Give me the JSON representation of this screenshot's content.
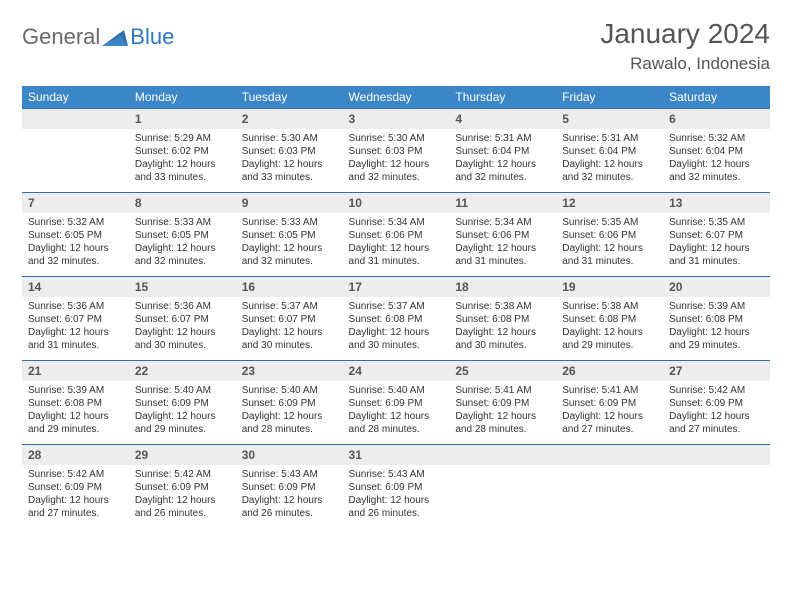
{
  "logo": {
    "general": "General",
    "blue": "Blue"
  },
  "title": "January 2024",
  "location": "Rawalo, Indonesia",
  "colors": {
    "header_bg": "#3b86c7",
    "header_text": "#ffffff",
    "daynum_bg": "#ededed",
    "daynum_border": "#2f6ea8",
    "body_text": "#333333",
    "title_color": "#555555"
  },
  "day_headers": [
    "Sunday",
    "Monday",
    "Tuesday",
    "Wednesday",
    "Thursday",
    "Friday",
    "Saturday"
  ],
  "weeks": [
    {
      "nums": [
        "",
        "1",
        "2",
        "3",
        "4",
        "5",
        "6"
      ],
      "cells": [
        null,
        {
          "sunrise": "Sunrise: 5:29 AM",
          "sunset": "Sunset: 6:02 PM",
          "day1": "Daylight: 12 hours",
          "day2": "and 33 minutes."
        },
        {
          "sunrise": "Sunrise: 5:30 AM",
          "sunset": "Sunset: 6:03 PM",
          "day1": "Daylight: 12 hours",
          "day2": "and 33 minutes."
        },
        {
          "sunrise": "Sunrise: 5:30 AM",
          "sunset": "Sunset: 6:03 PM",
          "day1": "Daylight: 12 hours",
          "day2": "and 32 minutes."
        },
        {
          "sunrise": "Sunrise: 5:31 AM",
          "sunset": "Sunset: 6:04 PM",
          "day1": "Daylight: 12 hours",
          "day2": "and 32 minutes."
        },
        {
          "sunrise": "Sunrise: 5:31 AM",
          "sunset": "Sunset: 6:04 PM",
          "day1": "Daylight: 12 hours",
          "day2": "and 32 minutes."
        },
        {
          "sunrise": "Sunrise: 5:32 AM",
          "sunset": "Sunset: 6:04 PM",
          "day1": "Daylight: 12 hours",
          "day2": "and 32 minutes."
        }
      ]
    },
    {
      "nums": [
        "7",
        "8",
        "9",
        "10",
        "11",
        "12",
        "13"
      ],
      "cells": [
        {
          "sunrise": "Sunrise: 5:32 AM",
          "sunset": "Sunset: 6:05 PM",
          "day1": "Daylight: 12 hours",
          "day2": "and 32 minutes."
        },
        {
          "sunrise": "Sunrise: 5:33 AM",
          "sunset": "Sunset: 6:05 PM",
          "day1": "Daylight: 12 hours",
          "day2": "and 32 minutes."
        },
        {
          "sunrise": "Sunrise: 5:33 AM",
          "sunset": "Sunset: 6:05 PM",
          "day1": "Daylight: 12 hours",
          "day2": "and 32 minutes."
        },
        {
          "sunrise": "Sunrise: 5:34 AM",
          "sunset": "Sunset: 6:06 PM",
          "day1": "Daylight: 12 hours",
          "day2": "and 31 minutes."
        },
        {
          "sunrise": "Sunrise: 5:34 AM",
          "sunset": "Sunset: 6:06 PM",
          "day1": "Daylight: 12 hours",
          "day2": "and 31 minutes."
        },
        {
          "sunrise": "Sunrise: 5:35 AM",
          "sunset": "Sunset: 6:06 PM",
          "day1": "Daylight: 12 hours",
          "day2": "and 31 minutes."
        },
        {
          "sunrise": "Sunrise: 5:35 AM",
          "sunset": "Sunset: 6:07 PM",
          "day1": "Daylight: 12 hours",
          "day2": "and 31 minutes."
        }
      ]
    },
    {
      "nums": [
        "14",
        "15",
        "16",
        "17",
        "18",
        "19",
        "20"
      ],
      "cells": [
        {
          "sunrise": "Sunrise: 5:36 AM",
          "sunset": "Sunset: 6:07 PM",
          "day1": "Daylight: 12 hours",
          "day2": "and 31 minutes."
        },
        {
          "sunrise": "Sunrise: 5:36 AM",
          "sunset": "Sunset: 6:07 PM",
          "day1": "Daylight: 12 hours",
          "day2": "and 30 minutes."
        },
        {
          "sunrise": "Sunrise: 5:37 AM",
          "sunset": "Sunset: 6:07 PM",
          "day1": "Daylight: 12 hours",
          "day2": "and 30 minutes."
        },
        {
          "sunrise": "Sunrise: 5:37 AM",
          "sunset": "Sunset: 6:08 PM",
          "day1": "Daylight: 12 hours",
          "day2": "and 30 minutes."
        },
        {
          "sunrise": "Sunrise: 5:38 AM",
          "sunset": "Sunset: 6:08 PM",
          "day1": "Daylight: 12 hours",
          "day2": "and 30 minutes."
        },
        {
          "sunrise": "Sunrise: 5:38 AM",
          "sunset": "Sunset: 6:08 PM",
          "day1": "Daylight: 12 hours",
          "day2": "and 29 minutes."
        },
        {
          "sunrise": "Sunrise: 5:39 AM",
          "sunset": "Sunset: 6:08 PM",
          "day1": "Daylight: 12 hours",
          "day2": "and 29 minutes."
        }
      ]
    },
    {
      "nums": [
        "21",
        "22",
        "23",
        "24",
        "25",
        "26",
        "27"
      ],
      "cells": [
        {
          "sunrise": "Sunrise: 5:39 AM",
          "sunset": "Sunset: 6:08 PM",
          "day1": "Daylight: 12 hours",
          "day2": "and 29 minutes."
        },
        {
          "sunrise": "Sunrise: 5:40 AM",
          "sunset": "Sunset: 6:09 PM",
          "day1": "Daylight: 12 hours",
          "day2": "and 29 minutes."
        },
        {
          "sunrise": "Sunrise: 5:40 AM",
          "sunset": "Sunset: 6:09 PM",
          "day1": "Daylight: 12 hours",
          "day2": "and 28 minutes."
        },
        {
          "sunrise": "Sunrise: 5:40 AM",
          "sunset": "Sunset: 6:09 PM",
          "day1": "Daylight: 12 hours",
          "day2": "and 28 minutes."
        },
        {
          "sunrise": "Sunrise: 5:41 AM",
          "sunset": "Sunset: 6:09 PM",
          "day1": "Daylight: 12 hours",
          "day2": "and 28 minutes."
        },
        {
          "sunrise": "Sunrise: 5:41 AM",
          "sunset": "Sunset: 6:09 PM",
          "day1": "Daylight: 12 hours",
          "day2": "and 27 minutes."
        },
        {
          "sunrise": "Sunrise: 5:42 AM",
          "sunset": "Sunset: 6:09 PM",
          "day1": "Daylight: 12 hours",
          "day2": "and 27 minutes."
        }
      ]
    },
    {
      "nums": [
        "28",
        "29",
        "30",
        "31",
        "",
        "",
        ""
      ],
      "cells": [
        {
          "sunrise": "Sunrise: 5:42 AM",
          "sunset": "Sunset: 6:09 PM",
          "day1": "Daylight: 12 hours",
          "day2": "and 27 minutes."
        },
        {
          "sunrise": "Sunrise: 5:42 AM",
          "sunset": "Sunset: 6:09 PM",
          "day1": "Daylight: 12 hours",
          "day2": "and 26 minutes."
        },
        {
          "sunrise": "Sunrise: 5:43 AM",
          "sunset": "Sunset: 6:09 PM",
          "day1": "Daylight: 12 hours",
          "day2": "and 26 minutes."
        },
        {
          "sunrise": "Sunrise: 5:43 AM",
          "sunset": "Sunset: 6:09 PM",
          "day1": "Daylight: 12 hours",
          "day2": "and 26 minutes."
        },
        null,
        null,
        null
      ]
    }
  ]
}
